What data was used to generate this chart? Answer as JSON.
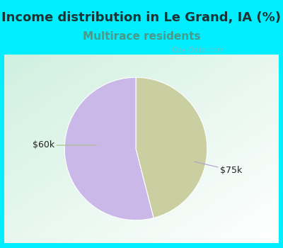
{
  "title": "Income distribution in Le Grand, IA (%)",
  "subtitle": "Multirace residents",
  "title_color": "#1a3333",
  "subtitle_color": "#4a9a8a",
  "background_color": "#00eeff",
  "slices": [
    {
      "label": "$60k",
      "value": 46,
      "color": "#c9cfa0"
    },
    {
      "label": "$75k",
      "value": 54,
      "color": "#c9b8e8"
    }
  ],
  "title_fontsize": 13,
  "subtitle_fontsize": 11,
  "label_fontsize": 9,
  "watermark": "City-Data.com"
}
